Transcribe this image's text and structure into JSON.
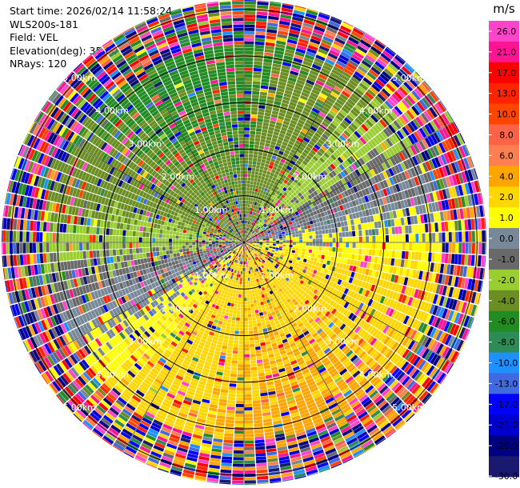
{
  "header": {
    "start_time": "Start time: 2026/02/14 11:58:24",
    "instrument": "WLS200s-181",
    "field": "Field: VEL",
    "elevation": "Elevation(deg): 35.00",
    "nrays": "NRays: 120"
  },
  "chart_data": {
    "type": "heatmap",
    "projection": "polar PPI scan",
    "field": "VEL",
    "units": "m/s",
    "elevation_deg": 35.0,
    "n_rays": 120,
    "range_rings_km": [
      1.0,
      2.0,
      3.0,
      4.0,
      5.0
    ],
    "range_labels": [
      "1.00km",
      "2.00km",
      "3.00km",
      "4.00km",
      "5.00km"
    ],
    "max_range_km": 5.2,
    "colorbar": {
      "title": "m/s",
      "ticks": [
        "26.0",
        "21.0",
        "17.0",
        "13.0",
        "10.0",
        "8.0",
        "6.0",
        "4.0",
        "2.0",
        "1.0",
        "0.0",
        "-1.0",
        "-2.0",
        "-4.0",
        "-6.0",
        "-8.0",
        "-10.0",
        "-13.0",
        "-17.0",
        "-21.0",
        "-26.0",
        "-30.0"
      ],
      "bins": [
        {
          "from": 26.0,
          "to": 30.0,
          "color": "#ff44cc"
        },
        {
          "from": 21.0,
          "to": 26.0,
          "color": "#ff1493"
        },
        {
          "from": 17.0,
          "to": 21.0,
          "color": "#ff0000"
        },
        {
          "from": 13.0,
          "to": 17.0,
          "color": "#ff2400"
        },
        {
          "from": 10.0,
          "to": 13.0,
          "color": "#ff4500"
        },
        {
          "from": 8.0,
          "to": 10.0,
          "color": "#ff6347"
        },
        {
          "from": 6.0,
          "to": 8.0,
          "color": "#ff7f50"
        },
        {
          "from": 4.0,
          "to": 6.0,
          "color": "#ffa500"
        },
        {
          "from": 2.0,
          "to": 4.0,
          "color": "#ffd700"
        },
        {
          "from": 1.0,
          "to": 2.0,
          "color": "#ffff00"
        },
        {
          "from": 0.0,
          "to": 1.0,
          "color": "#778899"
        },
        {
          "from": -1.0,
          "to": 0.0,
          "color": "#696969"
        },
        {
          "from": -2.0,
          "to": -1.0,
          "color": "#9acd32"
        },
        {
          "from": -4.0,
          "to": -2.0,
          "color": "#6b8e23"
        },
        {
          "from": -6.0,
          "to": -4.0,
          "color": "#228b22"
        },
        {
          "from": -8.0,
          "to": -6.0,
          "color": "#2e8b57"
        },
        {
          "from": -10.0,
          "to": -8.0,
          "color": "#1e90ff"
        },
        {
          "from": -13.0,
          "to": -10.0,
          "color": "#4169e1"
        },
        {
          "from": -17.0,
          "to": -13.0,
          "color": "#0000ff"
        },
        {
          "from": -21.0,
          "to": -17.0,
          "color": "#0000cd"
        },
        {
          "from": -26.0,
          "to": -21.0,
          "color": "#000080"
        },
        {
          "from": -30.0,
          "to": -26.0,
          "color": "#191970"
        }
      ]
    },
    "pattern": {
      "positive_flow_toward_deg": 160,
      "negative_flow_from_deg": 340,
      "noise_beyond_km": 4.2
    }
  }
}
